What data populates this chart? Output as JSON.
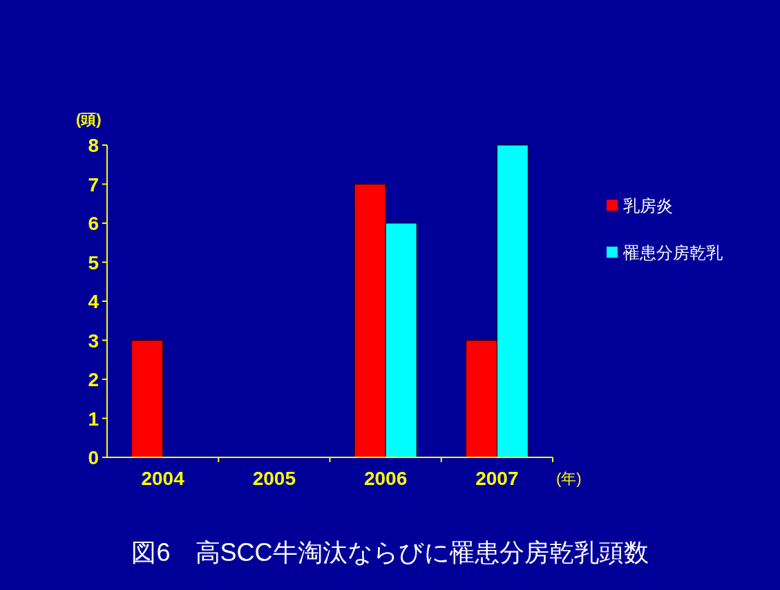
{
  "chart_data": {
    "type": "bar",
    "title": "図6　高SCC牛淘汰ならびに罹患分房乾乳頭数",
    "ylabel": "(頭)",
    "xlabel": "(年)",
    "categories": [
      "2004",
      "2005",
      "2006",
      "2007"
    ],
    "series": [
      {
        "name": "乳房炎",
        "color": "#ff0000",
        "values": [
          3,
          0,
          7,
          3
        ]
      },
      {
        "name": "罹患分房乾乳",
        "color": "#00ffff",
        "values": [
          0,
          0,
          6,
          8
        ]
      }
    ],
    "ylim": [
      0,
      8
    ],
    "yticks": [
      0,
      1,
      2,
      3,
      4,
      5,
      6,
      7,
      8
    ],
    "grid": false,
    "legend": "right"
  }
}
